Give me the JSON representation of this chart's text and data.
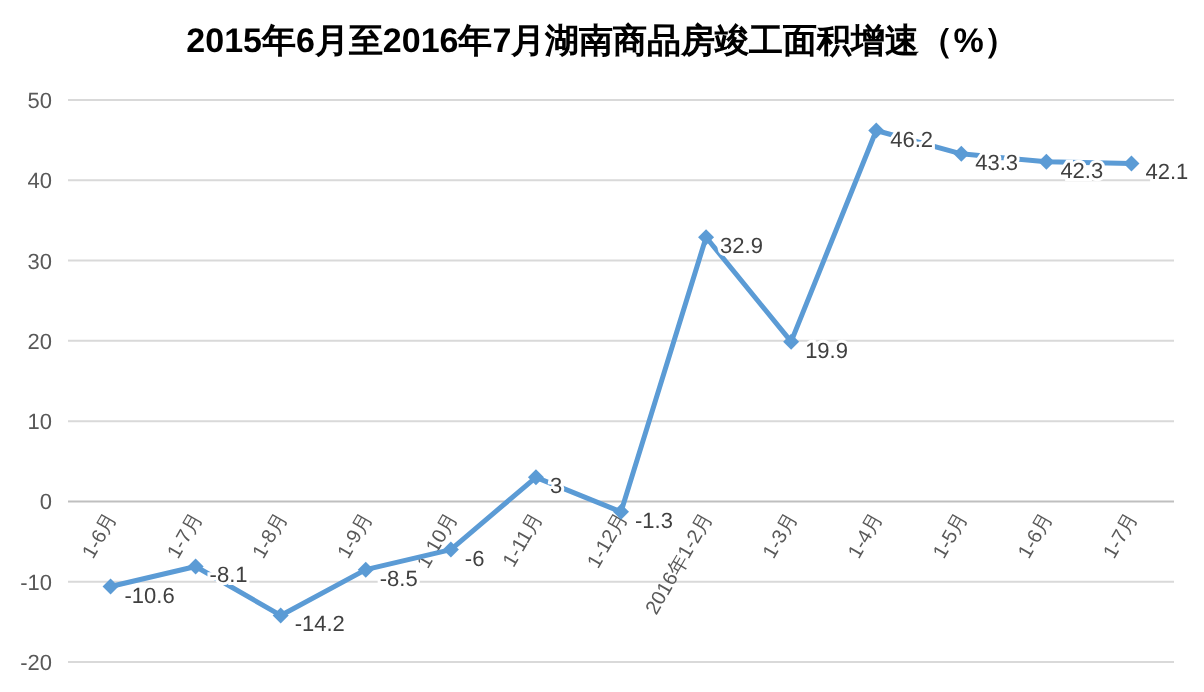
{
  "chart_data": {
    "type": "line",
    "title": "2015年6月至2016年7月湖南商品房竣工面积增速（%）",
    "categories": [
      "1-6月",
      "1-7月",
      "1-8月",
      "1-9月",
      "1-10月",
      "1-11月",
      "1-12月",
      "2016年1-2月",
      "1-3月",
      "1-4月",
      "1-5月",
      "1-6月",
      "1-7月"
    ],
    "series": [
      {
        "color": "#5b9bd5",
        "values": [
          -10.6,
          -8.1,
          -14.2,
          -8.5,
          -6,
          3,
          -1.3,
          32.9,
          19.9,
          46.2,
          43.3,
          42.3,
          42.1
        ]
      }
    ],
    "ylim": [
      -20,
      50
    ],
    "yticks": [
      -20,
      -10,
      0,
      10,
      20,
      30,
      40,
      50
    ],
    "grid": "y",
    "marker": "diamond",
    "data_labels": true
  }
}
